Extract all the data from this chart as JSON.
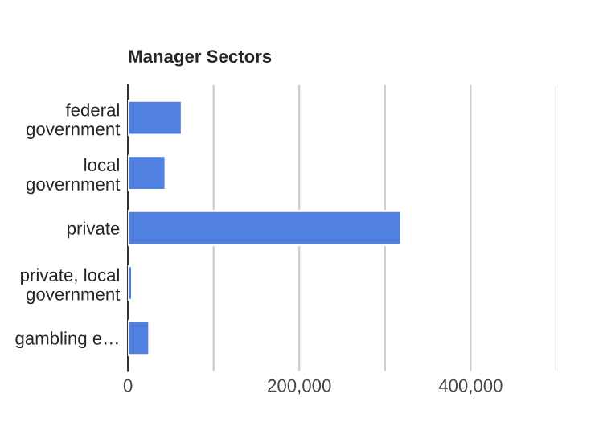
{
  "chart_data": {
    "type": "bar",
    "title": "Manager Sectors",
    "orientation": "horizontal",
    "categories": [
      "federal\ngovernment",
      "local\ngovernment",
      "private",
      "private, local\ngovernment",
      "gambling e…"
    ],
    "values": [
      63000,
      44000,
      319000,
      5000,
      25000
    ],
    "color": "#5181e0",
    "xlim": [
      0,
      500000
    ],
    "xticks": [
      0,
      {
        "value": 100000,
        "label": null
      },
      {
        "value": 200000,
        "label": "200,000"
      },
      {
        "value": 300000,
        "label": null
      },
      {
        "value": 400000,
        "label": "400,000"
      },
      {
        "value": 500000,
        "label": null
      }
    ],
    "grid": "x"
  }
}
